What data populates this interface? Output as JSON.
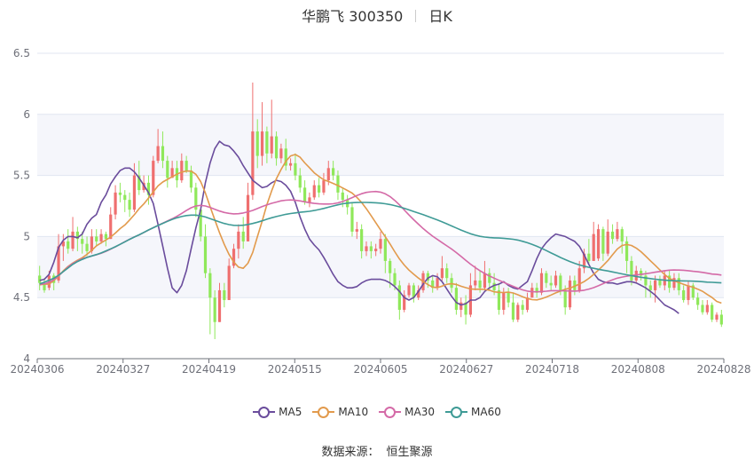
{
  "chart_data": {
    "type": "candlestick",
    "title": "华鹏飞 300350",
    "subtitle": "日K",
    "ylim": [
      4,
      6.5
    ],
    "yticks": [
      "4",
      "4.5",
      "5",
      "5.5",
      "6",
      "6.5"
    ],
    "xticks": [
      "20240306",
      "20240327",
      "20240419",
      "20240515",
      "20240605",
      "20240627",
      "20240718",
      "20240808",
      "20240828"
    ],
    "colors": {
      "up": "#ef6f6f",
      "down": "#8fe85a",
      "grid": "#e0e6f1",
      "band": "#f5f6fb",
      "MA5": "#6a4c9c",
      "MA10": "#e29a4c",
      "MA30": "#d46aa7",
      "MA60": "#3f9b96"
    },
    "candles": [
      [
        4.68,
        4.62,
        4.76,
        4.56
      ],
      [
        4.62,
        4.56,
        4.66,
        4.54
      ],
      [
        4.58,
        4.68,
        4.72,
        4.56
      ],
      [
        4.68,
        4.62,
        4.7,
        4.56
      ],
      [
        4.64,
        4.92,
        5.02,
        4.62
      ],
      [
        4.92,
        4.96,
        5.02,
        4.8
      ],
      [
        4.96,
        4.9,
        5.06,
        4.86
      ],
      [
        4.9,
        5.04,
        5.16,
        4.88
      ],
      [
        5.04,
        4.98,
        5.08,
        4.88
      ],
      [
        4.98,
        4.94,
        5.04,
        4.86
      ],
      [
        4.94,
        4.88,
        5.0,
        4.84
      ],
      [
        4.88,
        5.0,
        5.06,
        4.86
      ],
      [
        5.0,
        4.96,
        5.06,
        4.92
      ],
      [
        4.96,
        5.02,
        5.06,
        4.94
      ],
      [
        5.02,
        4.98,
        5.04,
        4.92
      ],
      [
        4.98,
        5.18,
        5.24,
        4.98
      ],
      [
        5.18,
        5.36,
        5.42,
        5.14
      ],
      [
        5.36,
        5.34,
        5.44,
        5.28
      ],
      [
        5.34,
        5.3,
        5.38,
        5.2
      ],
      [
        5.3,
        5.22,
        5.36,
        5.16
      ],
      [
        5.22,
        5.5,
        5.6,
        5.2
      ],
      [
        5.5,
        5.38,
        5.62,
        5.34
      ],
      [
        5.38,
        5.44,
        5.5,
        5.36
      ],
      [
        5.44,
        5.34,
        5.5,
        5.26
      ],
      [
        5.34,
        5.62,
        5.66,
        5.32
      ],
      [
        5.62,
        5.74,
        5.88,
        5.6
      ],
      [
        5.74,
        5.62,
        5.86,
        5.56
      ],
      [
        5.62,
        5.48,
        5.66,
        5.4
      ],
      [
        5.48,
        5.56,
        5.62,
        5.48
      ],
      [
        5.56,
        5.46,
        5.62,
        5.4
      ],
      [
        5.46,
        5.62,
        5.68,
        5.44
      ],
      [
        5.62,
        5.54,
        5.66,
        5.52
      ],
      [
        5.54,
        5.4,
        5.58,
        5.36
      ],
      [
        5.4,
        5.22,
        5.44,
        5.16
      ],
      [
        5.22,
        5.0,
        5.24,
        4.96
      ],
      [
        5.0,
        4.7,
        5.1,
        4.66
      ],
      [
        4.7,
        4.5,
        4.74,
        4.2
      ],
      [
        4.5,
        4.3,
        4.56,
        4.16
      ],
      [
        4.3,
        4.56,
        4.62,
        4.3
      ],
      [
        4.56,
        4.48,
        4.62,
        4.42
      ],
      [
        4.48,
        4.76,
        4.82,
        4.48
      ],
      [
        4.76,
        4.9,
        4.94,
        4.74
      ],
      [
        4.9,
        5.04,
        5.1,
        4.82
      ],
      [
        5.04,
        4.96,
        5.16,
        4.9
      ],
      [
        4.96,
        5.34,
        5.44,
        4.96
      ],
      [
        5.34,
        5.86,
        6.26,
        5.3
      ],
      [
        5.86,
        5.66,
        5.96,
        5.56
      ],
      [
        5.66,
        5.86,
        6.1,
        5.58
      ],
      [
        5.86,
        5.68,
        5.9,
        5.6
      ],
      [
        5.68,
        5.82,
        6.12,
        5.64
      ],
      [
        5.82,
        5.64,
        5.86,
        5.58
      ],
      [
        5.64,
        5.72,
        5.76,
        5.6
      ],
      [
        5.72,
        5.58,
        5.8,
        5.54
      ],
      [
        5.58,
        5.6,
        5.64,
        5.54
      ],
      [
        5.6,
        5.5,
        5.68,
        5.46
      ],
      [
        5.5,
        5.4,
        5.56,
        5.36
      ],
      [
        5.4,
        5.28,
        5.46,
        5.26
      ],
      [
        5.28,
        5.32,
        5.36,
        5.24
      ],
      [
        5.32,
        5.42,
        5.46,
        5.3
      ],
      [
        5.42,
        5.36,
        5.48,
        5.32
      ],
      [
        5.36,
        5.46,
        5.52,
        5.34
      ],
      [
        5.46,
        5.56,
        5.62,
        5.42
      ],
      [
        5.56,
        5.5,
        5.62,
        5.46
      ],
      [
        5.5,
        5.36,
        5.54,
        5.3
      ],
      [
        5.36,
        5.3,
        5.4,
        5.24
      ],
      [
        5.3,
        5.24,
        5.34,
        5.18
      ],
      [
        5.24,
        5.04,
        5.28,
        5.0
      ],
      [
        5.04,
        5.06,
        5.12,
        4.98
      ],
      [
        5.06,
        4.88,
        5.1,
        4.82
      ],
      [
        4.88,
        4.92,
        4.96,
        4.84
      ],
      [
        4.92,
        4.88,
        4.96,
        4.82
      ],
      [
        4.88,
        4.9,
        4.94,
        4.84
      ],
      [
        4.9,
        4.98,
        5.04,
        4.86
      ],
      [
        4.98,
        4.8,
        5.02,
        4.7
      ],
      [
        4.8,
        4.7,
        4.82,
        4.58
      ],
      [
        4.7,
        4.6,
        4.74,
        4.56
      ],
      [
        4.6,
        4.4,
        4.64,
        4.32
      ],
      [
        4.4,
        4.52,
        4.56,
        4.38
      ],
      [
        4.52,
        4.6,
        4.62,
        4.5
      ],
      [
        4.6,
        4.5,
        4.62,
        4.46
      ],
      [
        4.5,
        4.56,
        4.6,
        4.48
      ],
      [
        4.56,
        4.7,
        4.72,
        4.54
      ],
      [
        4.7,
        4.64,
        4.72,
        4.58
      ],
      [
        4.64,
        4.58,
        4.68,
        4.54
      ],
      [
        4.58,
        4.66,
        4.7,
        4.56
      ],
      [
        4.66,
        4.74,
        4.84,
        4.64
      ],
      [
        4.74,
        4.66,
        4.78,
        4.62
      ],
      [
        4.66,
        4.58,
        4.7,
        4.54
      ],
      [
        4.58,
        4.4,
        4.62,
        4.36
      ],
      [
        4.4,
        4.46,
        4.5,
        4.34
      ],
      [
        4.46,
        4.36,
        4.52,
        4.28
      ],
      [
        4.36,
        4.6,
        4.7,
        4.34
      ],
      [
        4.6,
        4.64,
        4.76,
        4.56
      ],
      [
        4.64,
        4.58,
        4.72,
        4.54
      ],
      [
        4.58,
        4.7,
        4.8,
        4.56
      ],
      [
        4.7,
        4.62,
        4.74,
        4.56
      ],
      [
        4.62,
        4.56,
        4.7,
        4.52
      ],
      [
        4.56,
        4.4,
        4.62,
        4.36
      ],
      [
        4.4,
        4.54,
        4.58,
        4.36
      ],
      [
        4.54,
        4.46,
        4.58,
        4.42
      ],
      [
        4.46,
        4.32,
        4.54,
        4.3
      ],
      [
        4.32,
        4.44,
        4.46,
        4.3
      ],
      [
        4.44,
        4.4,
        4.48,
        4.36
      ],
      [
        4.4,
        4.5,
        4.54,
        4.38
      ],
      [
        4.5,
        4.58,
        4.62,
        4.5
      ],
      [
        4.58,
        4.54,
        4.62,
        4.5
      ],
      [
        4.54,
        4.7,
        4.74,
        4.52
      ],
      [
        4.7,
        4.62,
        4.72,
        4.58
      ],
      [
        4.62,
        4.6,
        4.68,
        4.56
      ],
      [
        4.6,
        4.68,
        4.72,
        4.58
      ],
      [
        4.68,
        4.56,
        4.7,
        4.52
      ],
      [
        4.56,
        4.42,
        4.6,
        4.36
      ],
      [
        4.42,
        4.64,
        4.68,
        4.4
      ],
      [
        4.64,
        4.56,
        4.68,
        4.52
      ],
      [
        4.56,
        4.74,
        4.8,
        4.54
      ],
      [
        4.74,
        4.86,
        4.9,
        4.7
      ],
      [
        4.86,
        4.8,
        4.98,
        4.78
      ],
      [
        4.8,
        5.02,
        5.12,
        4.8
      ],
      [
        4.82,
        5.06,
        5.1,
        4.8
      ],
      [
        5.06,
        4.86,
        5.08,
        4.8
      ],
      [
        4.86,
        5.04,
        5.14,
        4.84
      ],
      [
        5.04,
        4.98,
        5.1,
        4.94
      ],
      [
        4.98,
        5.06,
        5.12,
        4.96
      ],
      [
        5.06,
        4.96,
        5.08,
        4.86
      ],
      [
        4.96,
        4.8,
        5.0,
        4.7
      ],
      [
        4.8,
        4.64,
        4.84,
        4.6
      ],
      [
        4.64,
        4.72,
        4.76,
        4.62
      ],
      [
        4.72,
        4.68,
        4.74,
        4.64
      ],
      [
        4.68,
        4.6,
        4.72,
        4.5
      ],
      [
        4.6,
        4.56,
        4.64,
        4.5
      ],
      [
        4.56,
        4.64,
        4.68,
        4.46
      ],
      [
        4.64,
        4.6,
        4.68,
        4.58
      ],
      [
        4.6,
        4.68,
        4.72,
        4.56
      ],
      [
        4.68,
        4.58,
        4.72,
        4.54
      ],
      [
        4.58,
        4.66,
        4.7,
        4.56
      ],
      [
        4.66,
        4.56,
        4.7,
        4.52
      ],
      [
        4.56,
        4.48,
        4.6,
        4.46
      ],
      [
        4.48,
        4.6,
        4.64,
        4.44
      ],
      [
        4.6,
        4.5,
        4.62,
        4.48
      ],
      [
        4.5,
        4.44,
        4.54,
        4.4
      ],
      [
        4.44,
        4.38,
        4.48,
        4.36
      ],
      [
        4.38,
        4.44,
        4.48,
        4.36
      ],
      [
        4.44,
        4.32,
        4.46,
        4.3
      ],
      [
        4.32,
        4.36,
        4.38,
        4.3
      ],
      [
        4.36,
        4.28,
        4.4,
        4.26
      ]
    ],
    "ma": {
      "MA5": [
        4.64,
        4.65,
        4.69,
        4.79,
        4.91,
        4.97,
        5.0,
        5.0,
        4.99,
        5.02,
        5.1,
        5.15,
        5.18,
        5.28,
        5.34,
        5.43,
        5.49,
        5.54,
        5.56,
        5.56,
        5.53,
        5.48,
        5.42,
        5.36,
        5.27,
        5.1,
        4.92,
        4.74,
        4.58,
        4.54,
        4.6,
        4.72,
        4.9,
        5.07,
        5.22,
        5.44,
        5.6,
        5.72,
        5.78,
        5.75,
        5.74,
        5.7,
        5.65,
        5.58,
        5.52,
        5.46,
        5.43,
        5.4,
        5.41,
        5.44,
        5.46,
        5.45,
        5.42,
        5.37,
        5.28,
        5.16,
        5.06,
        4.98,
        4.93,
        4.89,
        4.83,
        4.76,
        4.69,
        4.63,
        4.6,
        4.58,
        4.58,
        4.59,
        4.62,
        4.64,
        4.65,
        4.65,
        4.65,
        4.64,
        4.62,
        4.59,
        4.55,
        4.5,
        4.48,
        4.5,
        4.55,
        4.61,
        4.66,
        4.68,
        4.67,
        4.63,
        4.57,
        4.51,
        4.46,
        4.44,
        4.45,
        4.48,
        4.48,
        4.5,
        4.55,
        4.58,
        4.6,
        4.61,
        4.63,
        4.6,
        4.58,
        4.57,
        4.6,
        4.63,
        4.72,
        4.82,
        4.9,
        4.95,
        4.99,
        5.02,
        5.01,
        5.0,
        4.98,
        4.96,
        4.92,
        4.85,
        4.77,
        4.7,
        4.65,
        4.63,
        4.62,
        4.62,
        4.61,
        4.62,
        4.63,
        4.63,
        4.62,
        4.6,
        4.58,
        4.55,
        4.52,
        4.48,
        4.44,
        4.42,
        4.4,
        4.37
      ]
    },
    "legend": [
      "MA5",
      "MA10",
      "MA30",
      "MA60"
    ],
    "legend_position": "bottom",
    "grid": true
  },
  "source": {
    "label": "数据来源：",
    "value": "恒生聚源"
  }
}
